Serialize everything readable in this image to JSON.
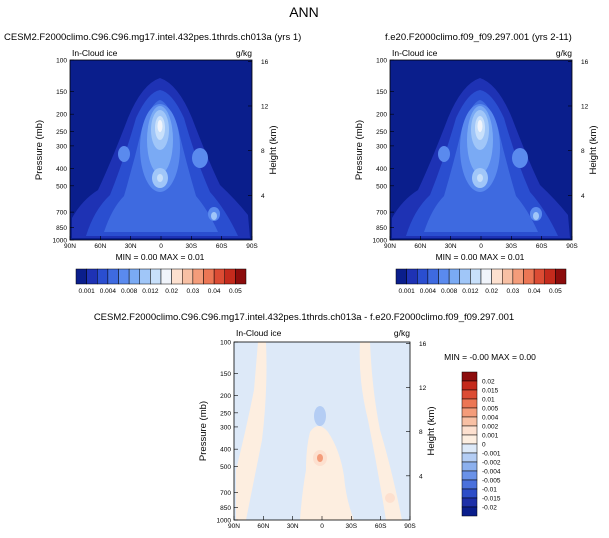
{
  "page_title": "ANN",
  "panels": [
    {
      "title": "CESM2.F2000climo.C96.C96.mg17.intel.432pes.1thrds.ch013a (yrs 1)",
      "field_label": "In-Cloud ice",
      "units": "g/kg",
      "stats_text": "MIN =  0.00  MAX =  0.01"
    },
    {
      "title": "f.e20.F2000climo.f09_f09.297.001 (yrs 2-11)",
      "field_label": "In-Cloud ice",
      "units": "g/kg",
      "stats_text": "MIN =  0.00  MAX =  0.01"
    },
    {
      "title": "CESM2.F2000climo.C96.C96.mg17.intel.432pes.1thrds.ch013a - f.e20.F2000climo.f09_f09.297.001",
      "field_label": "In-Cloud ice",
      "units": "g/kg",
      "stats_text": "MIN = -0.00  MAX =  0.00"
    }
  ],
  "chart_data": [
    {
      "type": "heatmap",
      "title": "CESM2.F2000climo.C96.C96.mg17.intel.432pes.1thrds.ch013a (yrs 1)",
      "ylabel": "Pressure (mb)",
      "ylabel_right": "Height (km)",
      "x_ticks": [
        "90N",
        "60N",
        "30N",
        "0",
        "30S",
        "60S",
        "90S"
      ],
      "x_values": [
        90,
        60,
        30,
        0,
        -30,
        -60,
        -90
      ],
      "y_ticks": [
        "100",
        "150",
        "200",
        "250",
        "300",
        "400",
        "500",
        "700",
        "850",
        "1000"
      ],
      "y_values": [
        100,
        150,
        200,
        250,
        300,
        400,
        500,
        700,
        850,
        1000
      ],
      "y_right_ticks": [
        "4",
        "8",
        "12",
        "16"
      ],
      "y_right_values": [
        4,
        8,
        12,
        16
      ],
      "ylim": [
        1000,
        100
      ],
      "y_scale": "log",
      "colorbar_levels": [
        "0.001",
        "0.004",
        "0.008",
        "0.012",
        "0.02",
        "0.03",
        "0.04",
        "0.05"
      ],
      "colorbar_colors": [
        "#0a1e8c",
        "#1e32b4",
        "#2a4ed0",
        "#3e6ae0",
        "#5a8aee",
        "#7aaaf4",
        "#a0c6f8",
        "#c8e0fb",
        "#f0f4fb",
        "#fde0cf",
        "#f8c0a4",
        "#f49c7a",
        "#ec7654",
        "#dc4c34",
        "#c42a1c",
        "#8c0c0c"
      ],
      "colorbar_position": "bottom",
      "min": 0.0,
      "max": 0.01
    },
    {
      "type": "heatmap",
      "title": "f.e20.F2000climo.f09_f09.297.001 (yrs 2-11)",
      "ylabel": "Pressure (mb)",
      "ylabel_right": "Height (km)",
      "x_ticks": [
        "90N",
        "60N",
        "30N",
        "0",
        "30S",
        "60S",
        "90S"
      ],
      "x_values": [
        90,
        60,
        30,
        0,
        -30,
        -60,
        -90
      ],
      "y_ticks": [
        "100",
        "150",
        "200",
        "250",
        "300",
        "400",
        "500",
        "700",
        "850",
        "1000"
      ],
      "y_values": [
        100,
        150,
        200,
        250,
        300,
        400,
        500,
        700,
        850,
        1000
      ],
      "y_right_ticks": [
        "4",
        "8",
        "12",
        "16"
      ],
      "y_right_values": [
        4,
        8,
        12,
        16
      ],
      "ylim": [
        1000,
        100
      ],
      "y_scale": "log",
      "colorbar_levels": [
        "0.001",
        "0.004",
        "0.008",
        "0.012",
        "0.02",
        "0.03",
        "0.04",
        "0.05"
      ],
      "colorbar_colors": [
        "#0a1e8c",
        "#1e32b4",
        "#2a4ed0",
        "#3e6ae0",
        "#5a8aee",
        "#7aaaf4",
        "#a0c6f8",
        "#c8e0fb",
        "#f0f4fb",
        "#fde0cf",
        "#f8c0a4",
        "#f49c7a",
        "#ec7654",
        "#dc4c34",
        "#c42a1c",
        "#8c0c0c"
      ],
      "colorbar_position": "bottom",
      "min": 0.0,
      "max": 0.01
    },
    {
      "type": "heatmap",
      "title": "CESM2.F2000climo.C96.C96.mg17.intel.432pes.1thrds.ch013a - f.e20.F2000climo.f09_f09.297.001",
      "ylabel": "Pressure (mb)",
      "ylabel_right": "Height (km)",
      "x_ticks": [
        "90N",
        "60N",
        "30N",
        "0",
        "30S",
        "60S",
        "90S"
      ],
      "x_values": [
        90,
        60,
        30,
        0,
        -30,
        -60,
        -90
      ],
      "y_ticks": [
        "100",
        "150",
        "200",
        "250",
        "300",
        "400",
        "500",
        "700",
        "850",
        "1000"
      ],
      "y_values": [
        100,
        150,
        200,
        250,
        300,
        400,
        500,
        700,
        850,
        1000
      ],
      "y_right_ticks": [
        "4",
        "8",
        "12",
        "16"
      ],
      "y_right_values": [
        4,
        8,
        12,
        16
      ],
      "ylim": [
        1000,
        100
      ],
      "y_scale": "log",
      "colorbar_levels": [
        "0.02",
        "0.015",
        "0.01",
        "0.005",
        "0.004",
        "0.002",
        "0.001",
        "0",
        "-0.001",
        "-0.002",
        "-0.004",
        "-0.005",
        "-0.01",
        "-0.015",
        "-0.02"
      ],
      "colorbar_colors": [
        "#8c0c0c",
        "#c42a1c",
        "#dc4c34",
        "#ec7654",
        "#f49c7a",
        "#f8c0a4",
        "#fde0cf",
        "#fdeee0",
        "#dde9f8",
        "#b4cdf4",
        "#8cb0ee",
        "#6a92e8",
        "#4a70dc",
        "#2e4ec8",
        "#1e30a8",
        "#0a1e8c"
      ],
      "colorbar_position": "right",
      "min": -0.0,
      "max": 0.0
    }
  ]
}
